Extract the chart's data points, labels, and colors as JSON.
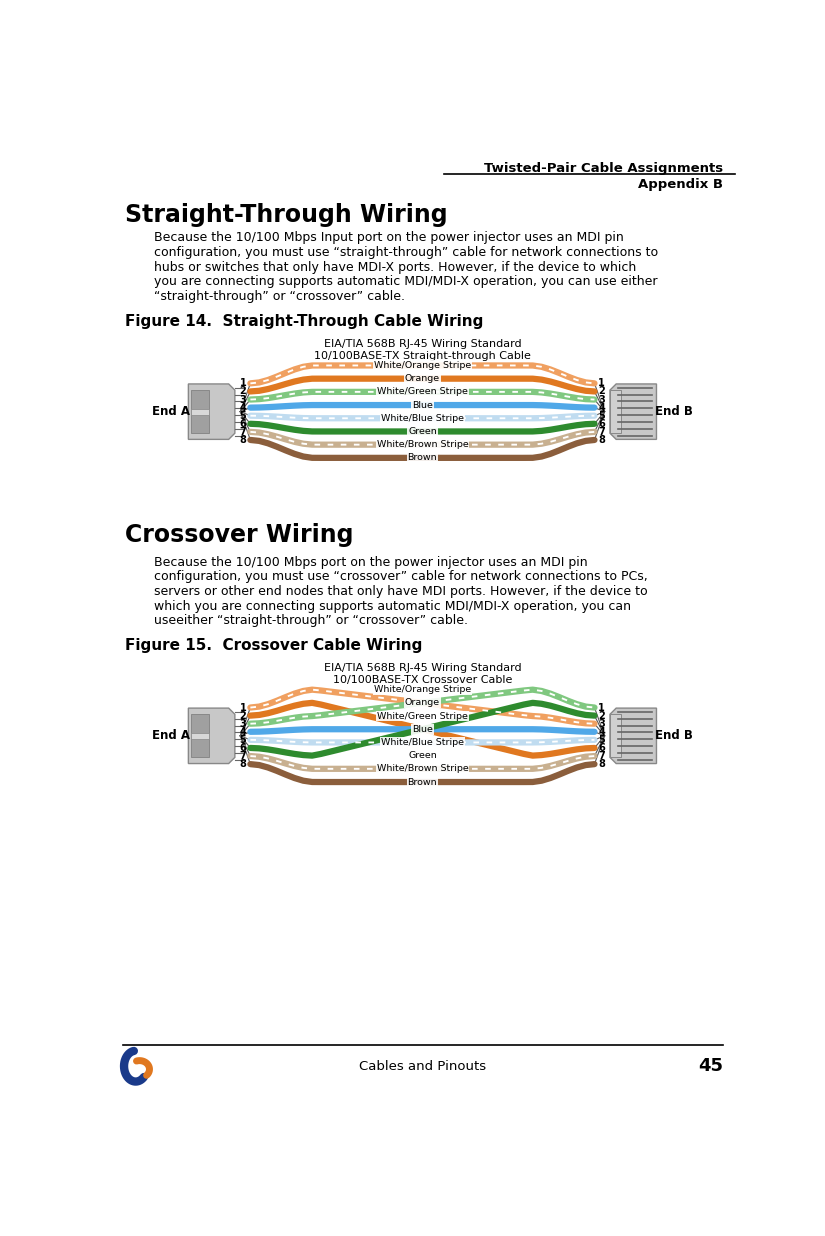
{
  "page_title_line1": "Twisted-Pair Cable Assignments",
  "page_title_line2": "Appendix B",
  "section1_title": "Straight-Through Wiring",
  "section1_body_lines": [
    "Because the 10/100 Mbps Input port on the power injector uses an MDI pin",
    "configuration, you must use “straight-through” cable for network connections to",
    "hubs or switches that only have MDI-X ports. However, if the device to which",
    "you are connecting supports automatic MDI/MDI-X operation, you can use either",
    "“straight-through” or “crossover” cable."
  ],
  "fig14_caption": "Figure 14.  Straight-Through Cable Wiring",
  "fig14_subtitle1": "EIA/TIA 568B RJ-45 Wiring Standard",
  "fig14_subtitle2": "10/100BASE-TX Straight-through Cable",
  "section2_title": "Crossover Wiring",
  "section2_body_lines": [
    "Because the 10/100 Mbps port on the power injector uses an MDI pin",
    "configuration, you must use “crossover” cable for network connections to PCs,",
    "servers or other end nodes that only have MDI ports. However, if the device to",
    "which you are connecting supports automatic MDI/MDI-X operation, you can",
    "useeither “straight-through” or “crossover” cable."
  ],
  "fig15_caption": "Figure 15.  Crossover Cable Wiring",
  "fig15_subtitle1": "EIA/TIA 568B RJ-45 Wiring Standard",
  "fig15_subtitle2": "10/100BASE-TX Crossover Cable",
  "footer_text": "Cables and Pinouts",
  "footer_page": "45",
  "wire_colors": [
    "#F0A060",
    "#E07820",
    "#80C880",
    "#50A8E8",
    "#C0DCF0",
    "#2E8B2E",
    "#C8B090",
    "#8B5E3C"
  ],
  "wire_stripe_colors": [
    "white",
    null,
    "white",
    null,
    "white",
    null,
    "white",
    null
  ],
  "wire_labels": [
    "White/Orange Stripe",
    "Orange",
    "White/Green Stripe",
    "Blue",
    "White/Blue Stripe",
    "Green",
    "White/Brown Stripe",
    "Brown"
  ],
  "straight_map": [
    0,
    1,
    2,
    3,
    4,
    5,
    6,
    7
  ],
  "crossover_map": [
    2,
    5,
    0,
    3,
    4,
    1,
    6,
    7
  ]
}
